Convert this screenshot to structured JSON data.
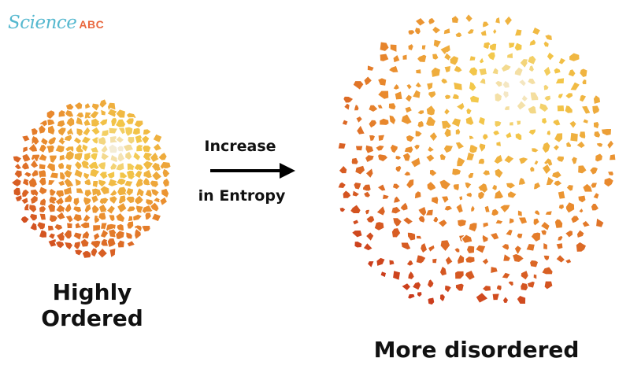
{
  "logo": {
    "script": "Science",
    "abc": "ABC"
  },
  "ordered": {
    "caption_line1": "Highly",
    "caption_line2": "Ordered"
  },
  "arrow": {
    "top_label": "Increase",
    "bottom_label": "in Entropy"
  },
  "disordered": {
    "caption": "More disordered"
  },
  "colors": {
    "brand_blue": "#55b8cf",
    "brand_orange": "#e9673e",
    "sphere_red": "#c8361a",
    "sphere_orange": "#e98a2d",
    "sphere_yellow": "#f3c84a",
    "sphere_highlight": "#f4f1ea"
  }
}
